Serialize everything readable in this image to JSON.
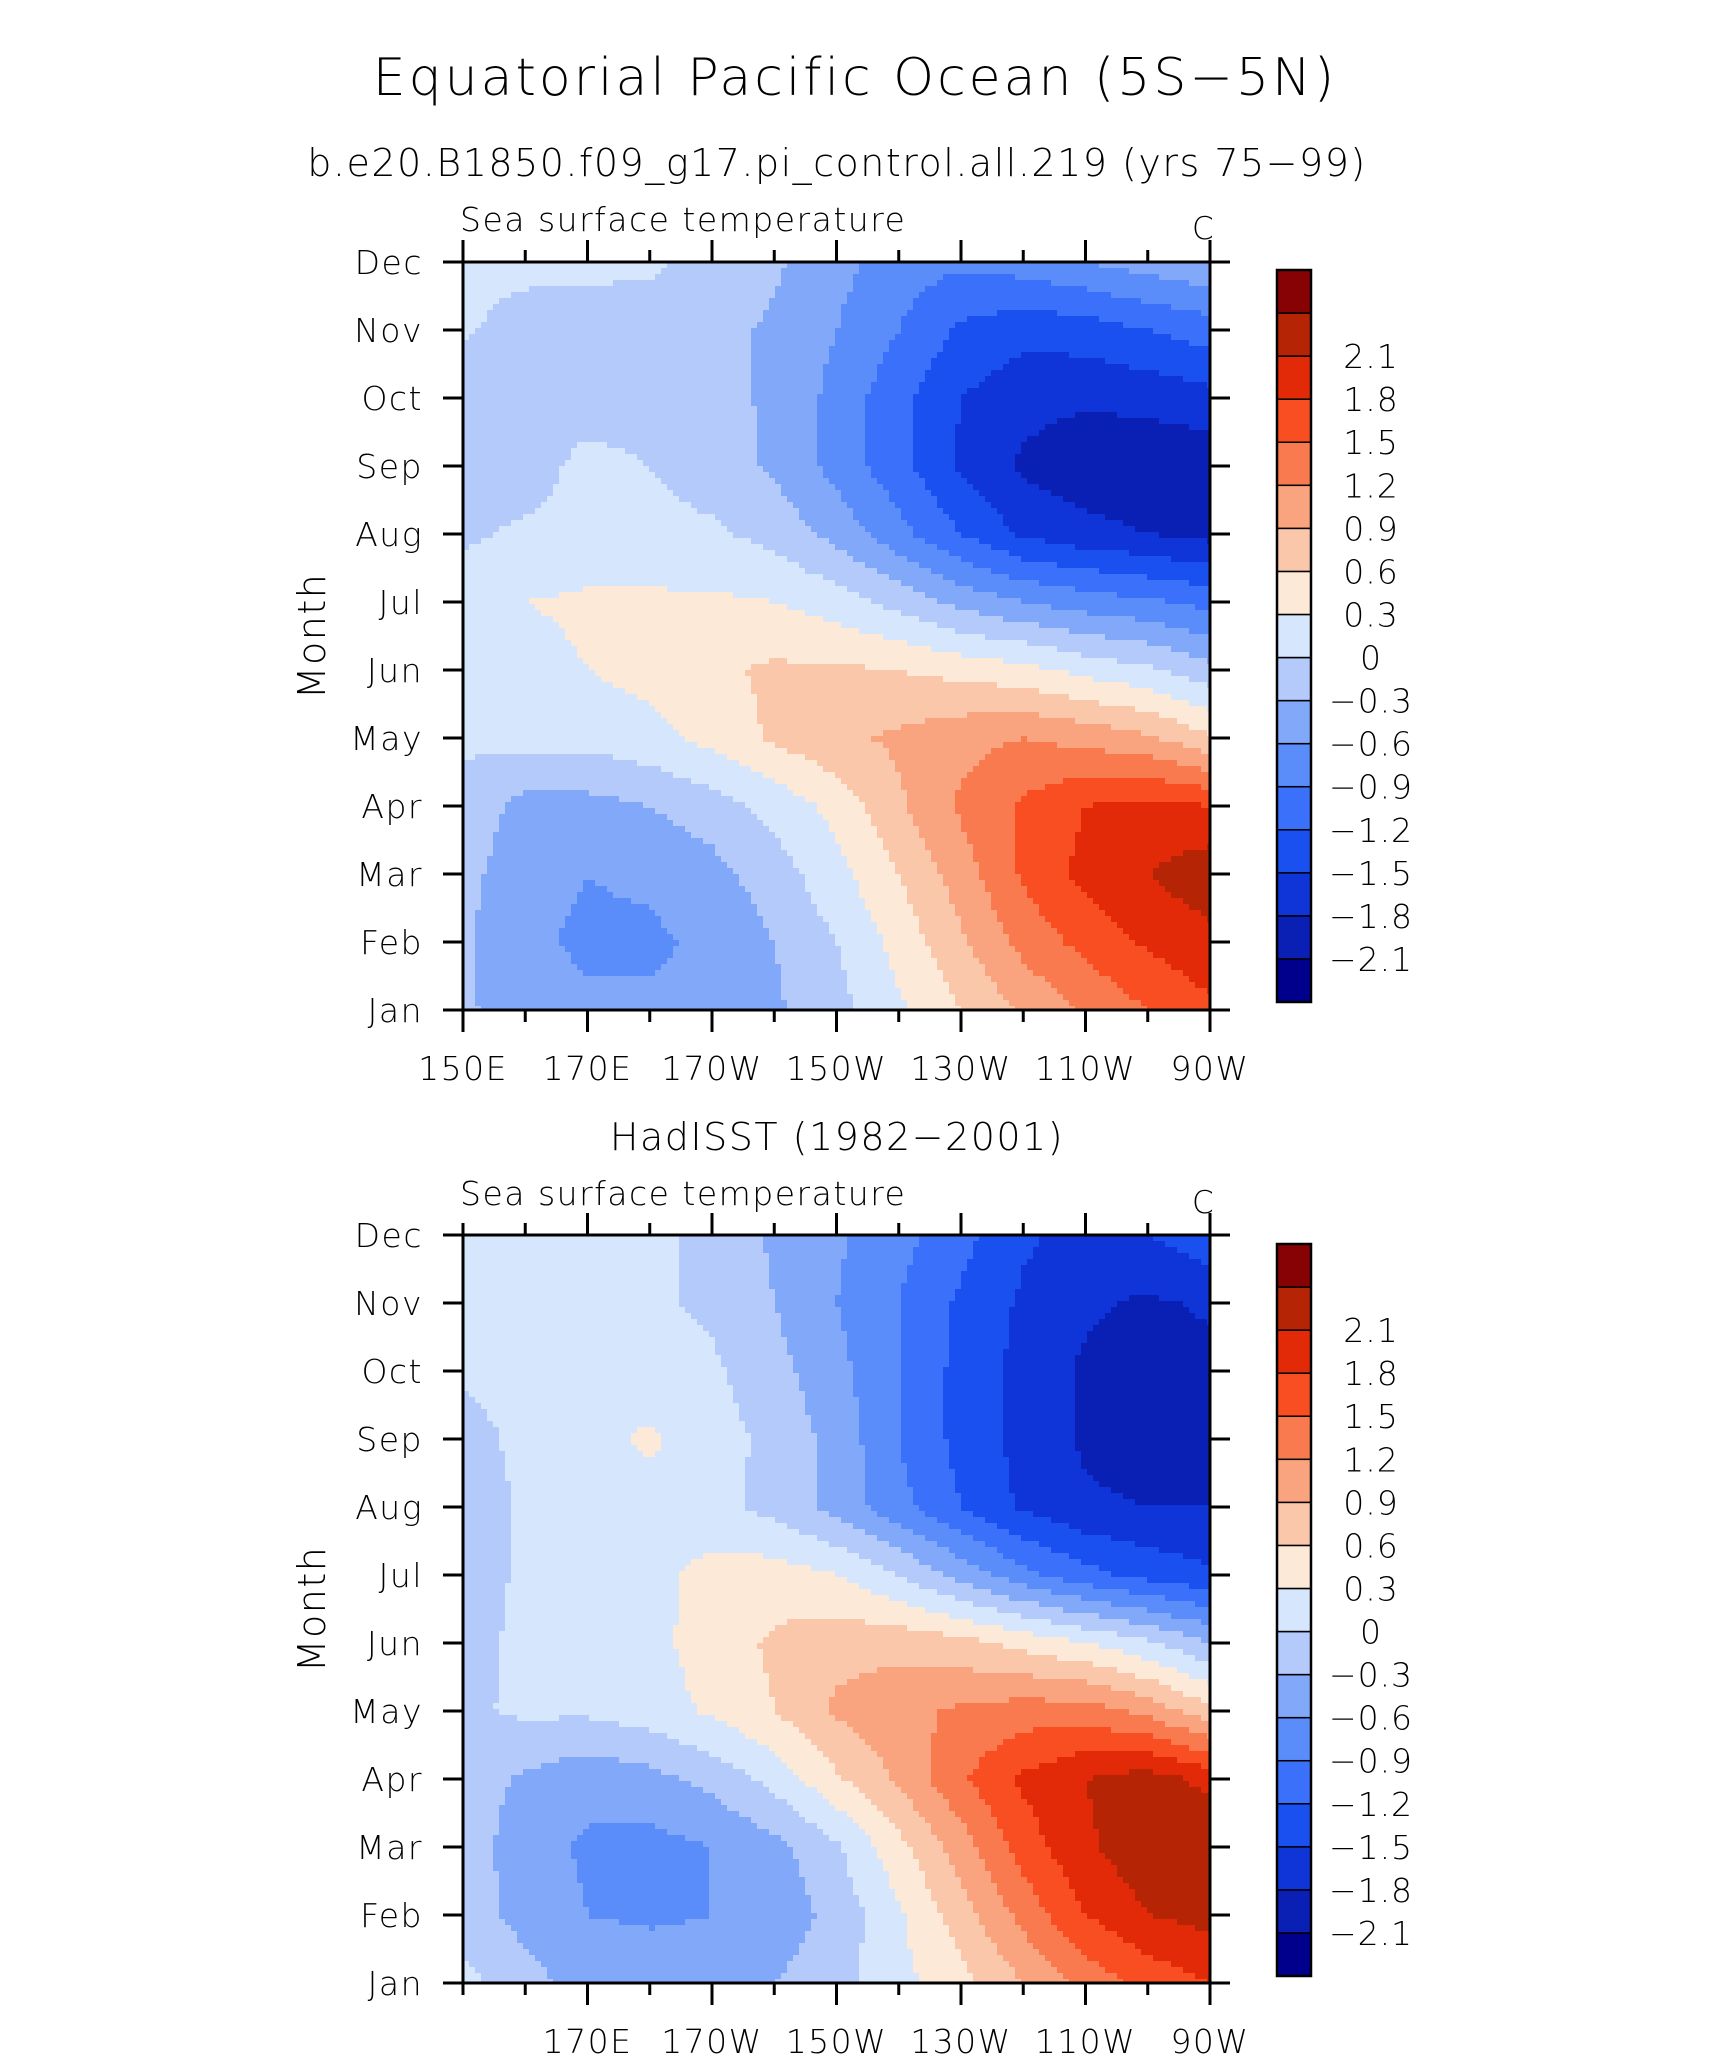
{
  "figure": {
    "title": "Equatorial Pacific Ocean (5S−5N)"
  },
  "panels": [
    {
      "id": "model",
      "title": "b.e20.B1850.f09_g17.pi_control.all.219 (yrs 75−99)",
      "subtitle": "Sea surface temperature",
      "units": "C",
      "ylabel": "Month"
    },
    {
      "id": "obs",
      "title": "HadISST (1982−2001)",
      "subtitle": "Sea surface temperature",
      "units": "C",
      "ylabel": "Month"
    }
  ],
  "chart_data": [
    {
      "type": "heatmap",
      "title": "b.e20.B1850.f09_g17.pi_control.all.219 (yrs 75−99)",
      "subtitle": "Sea surface temperature",
      "units": "C",
      "xlabel": "",
      "ylabel": "Month",
      "x": [
        150,
        160,
        170,
        180,
        190,
        200,
        210,
        220,
        230,
        240,
        250,
        260,
        270
      ],
      "x_tick_values": [
        150,
        170,
        190,
        210,
        230,
        250,
        270
      ],
      "x_tick_labels": [
        "150E",
        "170E",
        "170W",
        "150W",
        "130W",
        "110W",
        "90W"
      ],
      "y": [
        "Jan",
        "Feb",
        "Mar",
        "Apr",
        "May",
        "Jun",
        "Jul",
        "Aug",
        "Sep",
        "Oct",
        "Nov",
        "Dec"
      ],
      "z": [
        [
          -0.25,
          -0.45,
          -0.55,
          -0.55,
          -0.5,
          -0.35,
          -0.1,
          0.25,
          0.6,
          0.95,
          1.25,
          1.5,
          1.75
        ],
        [
          -0.25,
          -0.55,
          -0.65,
          -0.65,
          -0.55,
          -0.3,
          0.0,
          0.4,
          0.85,
          1.3,
          1.6,
          1.85,
          2.0
        ],
        [
          -0.2,
          -0.5,
          -0.6,
          -0.55,
          -0.4,
          -0.15,
          0.2,
          0.6,
          1.05,
          1.55,
          1.9,
          2.1,
          2.3
        ],
        [
          -0.1,
          -0.4,
          -0.4,
          -0.3,
          -0.15,
          0.1,
          0.4,
          0.85,
          1.25,
          1.55,
          1.8,
          1.9,
          1.8
        ],
        [
          0.05,
          0.1,
          0.1,
          0.2,
          0.4,
          0.65,
          0.85,
          0.95,
          1.1,
          1.2,
          1.1,
          0.95,
          0.65
        ],
        [
          0.15,
          0.2,
          0.3,
          0.4,
          0.55,
          0.65,
          0.65,
          0.6,
          0.5,
          0.4,
          0.2,
          0.05,
          -0.2
        ],
        [
          0.15,
          0.3,
          0.35,
          0.35,
          0.35,
          0.3,
          0.15,
          -0.1,
          -0.4,
          -0.6,
          -0.75,
          -0.85,
          -1.0
        ],
        [
          -0.05,
          0.05,
          0.1,
          0.1,
          0.05,
          -0.1,
          -0.4,
          -0.8,
          -1.2,
          -1.55,
          -1.7,
          -1.8,
          -1.9
        ],
        [
          -0.15,
          -0.15,
          0.1,
          0.0,
          -0.15,
          -0.35,
          -0.7,
          -1.1,
          -1.55,
          -1.85,
          -2.0,
          -2.05,
          -2.0
        ],
        [
          -0.2,
          -0.2,
          -0.15,
          -0.15,
          -0.2,
          -0.35,
          -0.7,
          -1.1,
          -1.5,
          -1.7,
          -1.75,
          -1.7,
          -1.6
        ],
        [
          0.05,
          -0.15,
          -0.2,
          -0.15,
          -0.2,
          -0.35,
          -0.6,
          -0.9,
          -1.25,
          -1.4,
          -1.35,
          -1.2,
          -1.05
        ],
        [
          0.1,
          0.1,
          0.1,
          0.05,
          -0.1,
          -0.25,
          -0.5,
          -0.75,
          -0.85,
          -0.75,
          -0.6,
          -0.45,
          -0.35
        ]
      ],
      "levels": [
        -2.1,
        -1.8,
        -1.5,
        -1.2,
        -0.9,
        -0.6,
        -0.3,
        0,
        0.3,
        0.6,
        0.9,
        1.2,
        1.5,
        1.8,
        2.1
      ],
      "colors": [
        "#00008c",
        "#0a1fb4",
        "#0f35d8",
        "#1a50f0",
        "#3a70fa",
        "#5a8cfa",
        "#82a8fa",
        "#b4cafa",
        "#d6e6fd",
        "#fde9d8",
        "#fbc7ab",
        "#f9a47f",
        "#f97a4e",
        "#f84e22",
        "#e32a08",
        "#b52405",
        "#870205"
      ]
    },
    {
      "type": "heatmap",
      "title": "HadISST (1982−2001)",
      "subtitle": "Sea surface temperature",
      "units": "C",
      "xlabel": "",
      "ylabel": "Month",
      "x": [
        150,
        160,
        170,
        180,
        190,
        200,
        210,
        220,
        230,
        240,
        250,
        260,
        270
      ],
      "x_tick_values": [
        170,
        190,
        210,
        230,
        250,
        270
      ],
      "x_tick_labels": [
        "170E",
        "170W",
        "150W",
        "130W",
        "110W",
        "90W"
      ],
      "y": [
        "Jan",
        "Feb",
        "Mar",
        "Apr",
        "May",
        "Jun",
        "Jul",
        "Aug",
        "Sep",
        "Oct",
        "Nov",
        "Dec"
      ],
      "z": [
        [
          0.1,
          -0.2,
          -0.4,
          -0.4,
          -0.4,
          -0.3,
          -0.1,
          0.2,
          0.5,
          0.9,
          1.3,
          1.6,
          1.8
        ],
        [
          -0.15,
          -0.4,
          -0.6,
          -0.65,
          -0.6,
          -0.5,
          -0.2,
          0.25,
          0.75,
          1.3,
          1.8,
          2.1,
          2.2
        ],
        [
          -0.15,
          -0.45,
          -0.65,
          -0.7,
          -0.6,
          -0.4,
          -0.05,
          0.5,
          1.05,
          1.65,
          2.05,
          2.3,
          2.4
        ],
        [
          -0.15,
          -0.35,
          -0.5,
          -0.4,
          -0.2,
          0.1,
          0.55,
          0.95,
          1.45,
          1.85,
          2.1,
          2.25,
          2.0
        ],
        [
          -0.05,
          0.05,
          0.05,
          0.15,
          0.35,
          0.6,
          0.95,
          1.1,
          1.25,
          1.35,
          1.35,
          1.1,
          0.7
        ],
        [
          -0.15,
          0.1,
          0.15,
          0.2,
          0.45,
          0.65,
          0.8,
          0.8,
          0.7,
          0.5,
          0.3,
          0.05,
          -0.3
        ],
        [
          -0.15,
          0.05,
          0.15,
          0.2,
          0.4,
          0.45,
          0.3,
          0.0,
          -0.4,
          -0.8,
          -1.1,
          -1.3,
          -1.45
        ],
        [
          -0.2,
          0.05,
          0.15,
          0.2,
          0.1,
          -0.1,
          -0.4,
          -0.8,
          -1.2,
          -1.55,
          -1.75,
          -1.8,
          -1.8
        ],
        [
          -0.15,
          0.1,
          0.2,
          0.35,
          0.15,
          -0.1,
          -0.4,
          -0.9,
          -1.3,
          -1.6,
          -1.85,
          -1.95,
          -1.9
        ],
        [
          0.05,
          0.15,
          0.15,
          0.15,
          0.05,
          -0.2,
          -0.5,
          -0.9,
          -1.3,
          -1.6,
          -1.85,
          -1.95,
          -1.9
        ],
        [
          0.05,
          0.1,
          0.1,
          0.05,
          -0.05,
          -0.3,
          -0.6,
          -0.9,
          -1.25,
          -1.55,
          -1.75,
          -1.85,
          -1.75
        ],
        [
          0.1,
          0.1,
          0.1,
          0.05,
          -0.05,
          -0.35,
          -0.55,
          -0.8,
          -1.1,
          -1.45,
          -1.6,
          -1.5,
          -1.3
        ]
      ],
      "levels": [
        -2.1,
        -1.8,
        -1.5,
        -1.2,
        -0.9,
        -0.6,
        -0.3,
        0,
        0.3,
        0.6,
        0.9,
        1.2,
        1.5,
        1.8,
        2.1
      ],
      "colors": [
        "#00008c",
        "#0a1fb4",
        "#0f35d8",
        "#1a50f0",
        "#3a70fa",
        "#5a8cfa",
        "#82a8fa",
        "#b4cafa",
        "#d6e6fd",
        "#fde9d8",
        "#fbc7ab",
        "#f9a47f",
        "#f97a4e",
        "#f84e22",
        "#e32a08",
        "#b52405",
        "#870205"
      ]
    }
  ]
}
